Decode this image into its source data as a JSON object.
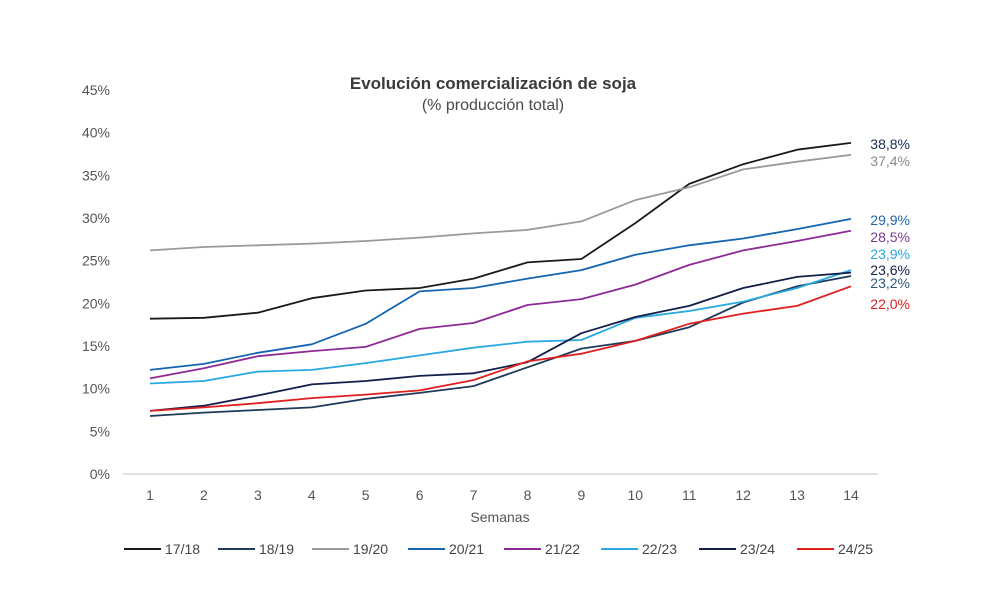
{
  "chart_data": {
    "type": "line",
    "title": "Evolución comercialización de soja",
    "subtitle": "(% producción total)",
    "xlabel": "Semanas",
    "ylabel": "",
    "x": [
      1,
      2,
      3,
      4,
      5,
      6,
      7,
      8,
      9,
      10,
      11,
      12,
      13,
      14
    ],
    "x_tick_labels": [
      "1",
      "2",
      "3",
      "4",
      "5",
      "6",
      "7",
      "8",
      "9",
      "10",
      "11",
      "12",
      "13",
      "14"
    ],
    "y_tick_labels": [
      "0%",
      "5%",
      "10%",
      "15%",
      "20%",
      "25%",
      "30%",
      "35%",
      "40%",
      "45%"
    ],
    "y_ticks": [
      0,
      5,
      10,
      15,
      20,
      25,
      30,
      35,
      40,
      45
    ],
    "ylim": [
      0,
      45
    ],
    "grid": false,
    "legend_position": "bottom",
    "series": [
      {
        "name": "17/18",
        "color": "#1a1a1a",
        "end_label": "",
        "values": [
          18.2,
          18.3,
          18.9,
          20.6,
          21.5,
          21.8,
          22.9,
          24.8,
          25.2,
          29.4,
          34.0,
          36.3,
          38.0,
          38.8
        ]
      },
      {
        "name": "18/19",
        "color": "#1f3a5a",
        "end_label": "23,2%",
        "end_label_color": "#2c5878",
        "values": [
          6.8,
          7.2,
          7.5,
          7.8,
          8.8,
          9.5,
          10.3,
          12.5,
          14.7,
          15.6,
          17.2,
          20.1,
          22.0,
          23.2
        ]
      },
      {
        "name": "19/20",
        "color": "#9a9a9a",
        "end_label": "37,4%",
        "end_label_color": "#8a8a8a",
        "values": [
          26.2,
          26.6,
          26.8,
          27.0,
          27.3,
          27.7,
          28.2,
          28.6,
          29.6,
          32.1,
          33.6,
          35.7,
          36.6,
          37.4
        ]
      },
      {
        "name": "20/21",
        "color": "#1565b0",
        "end_label": "29,9%",
        "end_label_color": "#1f66a8",
        "values": [
          12.2,
          12.9,
          14.2,
          15.2,
          17.6,
          21.4,
          21.8,
          22.9,
          23.9,
          25.7,
          26.8,
          27.6,
          28.7,
          29.9
        ]
      },
      {
        "name": "21/22",
        "color": "#8e2a96",
        "end_label": "28,5%",
        "end_label_color": "#7a3a90",
        "values": [
          11.2,
          12.4,
          13.8,
          14.4,
          14.9,
          17.0,
          17.7,
          19.8,
          20.5,
          22.2,
          24.5,
          26.2,
          27.3,
          28.5
        ]
      },
      {
        "name": "22/23",
        "color": "#29a9e0",
        "end_label": "23,9%",
        "end_label_color": "#29a9d8",
        "values": [
          10.6,
          10.9,
          12.0,
          12.2,
          13.0,
          13.9,
          14.8,
          15.5,
          15.7,
          18.3,
          19.1,
          20.2,
          21.8,
          23.9
        ]
      },
      {
        "name": "23/24",
        "color": "#141e4a",
        "end_label": "23,6%",
        "end_label_color": "#141e4a",
        "values": [
          7.4,
          8.0,
          9.2,
          10.5,
          10.9,
          11.5,
          11.8,
          13.1,
          16.5,
          18.4,
          19.7,
          21.8,
          23.1,
          23.6
        ]
      },
      {
        "name": "24/25",
        "color": "#e01f1f",
        "end_label": "22,0%",
        "end_label_color": "#d92020",
        "values": [
          7.4,
          7.8,
          8.3,
          8.9,
          9.3,
          9.8,
          11.0,
          13.2,
          14.1,
          15.6,
          17.6,
          18.8,
          19.7,
          22.0
        ]
      }
    ],
    "end_labels": [
      {
        "text": "38,8%",
        "color": "#1a2a55"
      },
      {
        "text": "37,4%",
        "color": "#8a8a8a"
      },
      {
        "text": "29,9%",
        "color": "#1f66a8"
      },
      {
        "text": "28,5%",
        "color": "#7a3a90"
      },
      {
        "text": "23,9%",
        "color": "#29a9d8"
      },
      {
        "text": "23,6%",
        "color": "#141e4a"
      },
      {
        "text": "23,2%",
        "color": "#2c5878"
      },
      {
        "text": "22,0%",
        "color": "#d92020"
      }
    ]
  }
}
